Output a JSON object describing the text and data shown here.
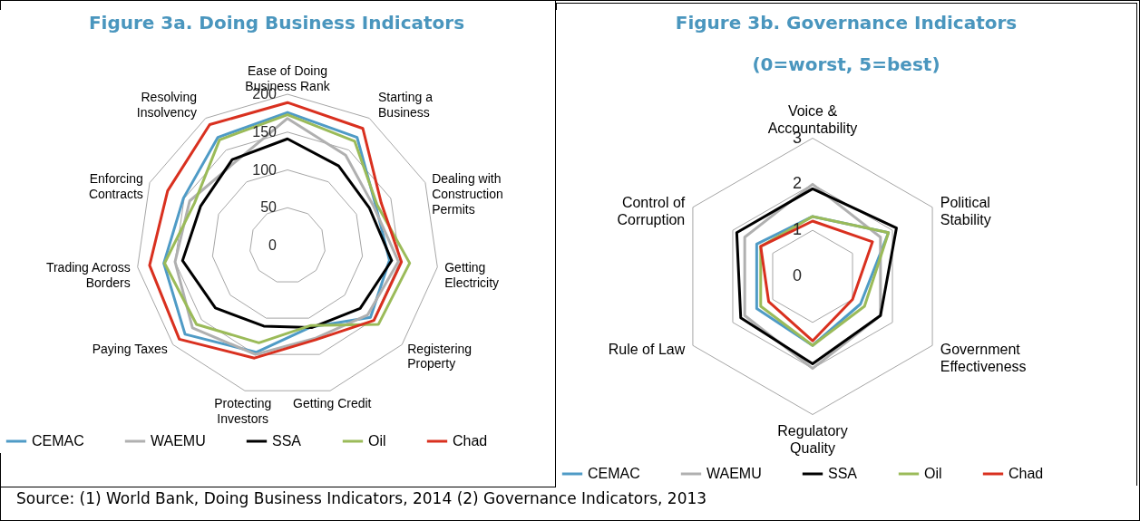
{
  "chart_data": [
    {
      "type": "radar",
      "title": "Figure 3a. Doing Business Indicators",
      "categories": [
        "Ease of Doing Business Rank",
        "Starting a Business",
        "Dealing with Construction Permits",
        "Getting Electricity",
        "Registering Property",
        "Getting Credit",
        "Protecting Investors",
        "Paying Taxes",
        "Trading Across Borders",
        "Enforcing Contracts",
        "Resolving Insolvency"
      ],
      "series": [
        {
          "name": "CEMAC",
          "color": "#4f9bc6",
          "values": [
            176,
            170,
            128,
            136,
            145,
            112,
            147,
            179,
            165,
            151,
            170
          ]
        },
        {
          "name": "WAEMU",
          "color": "#b0b0b0",
          "values": [
            168,
            142,
            125,
            148,
            140,
            128,
            150,
            166,
            150,
            142,
            130
          ]
        },
        {
          "name": "SSA",
          "color": "#000000",
          "values": [
            141,
            125,
            119,
            139,
            127,
            113,
            111,
            126,
            140,
            126,
            135
          ]
        },
        {
          "name": "Oil",
          "color": "#9bbb59",
          "values": [
            173,
            164,
            130,
            163,
            159,
            110,
            134,
            159,
            164,
            135,
            166
          ]
        },
        {
          "name": "Chad",
          "color": "#d9301f",
          "values": [
            189,
            184,
            136,
            152,
            151,
            130,
            155,
            189,
            184,
            174,
            190
          ]
        }
      ],
      "ylim": [
        0,
        200
      ],
      "yticks": [
        0,
        50,
        100,
        150,
        200
      ],
      "grid": true,
      "legend": "bottom",
      "annotations": [
        "Source: (1) World Bank, Doing Business Indicators, 2014 (2) Governance Indicators, 2013"
      ]
    },
    {
      "type": "radar",
      "title": "Figure 3b. Governance Indicators",
      "subtitle": "(0=worst, 5=best)",
      "categories": [
        "Voice & Accountability",
        "Political Stability",
        "Government Effectiveness",
        "Regulatory Quality",
        "Rule of Law",
        "Control of Corruption"
      ],
      "series": [
        {
          "name": "CEMAC",
          "color": "#4f9bc6",
          "values": [
            1.3,
            1.9,
            1.2,
            1.5,
            1.4,
            1.4
          ]
        },
        {
          "name": "WAEMU",
          "color": "#b0b0b0",
          "values": [
            2.0,
            1.7,
            1.7,
            2.0,
            1.7,
            1.7
          ]
        },
        {
          "name": "SSA",
          "color": "#000000",
          "values": [
            1.9,
            2.1,
            1.7,
            1.9,
            1.8,
            1.9
          ]
        },
        {
          "name": "Oil",
          "color": "#9bbb59",
          "values": [
            1.3,
            1.9,
            1.3,
            1.5,
            1.3,
            1.3
          ]
        },
        {
          "name": "Chad",
          "color": "#d9301f",
          "values": [
            1.2,
            1.5,
            1.0,
            1.4,
            1.1,
            1.3
          ]
        }
      ],
      "ylim": [
        0,
        3
      ],
      "yticks": [
        0,
        1,
        2,
        3
      ],
      "grid": true,
      "legend": "bottom"
    }
  ]
}
